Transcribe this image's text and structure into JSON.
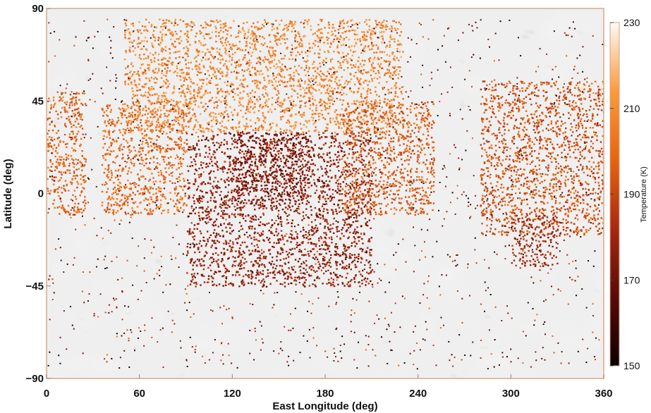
{
  "chart_data": {
    "type": "heatmap",
    "title": "",
    "xlabel": "East Longitude (deg)",
    "ylabel": "Latitude (deg)",
    "xlim": [
      0,
      360
    ],
    "ylim": [
      -90,
      90
    ],
    "xticks": [
      "0",
      "60",
      "120",
      "180",
      "240",
      "300",
      "360"
    ],
    "yticks": [
      "90",
      "45",
      "0",
      "−45",
      "−90"
    ],
    "basemap": "grayscale shaded relief",
    "colorbar": {
      "label": "Temperature (K)",
      "range": [
        150,
        230
      ],
      "ticks": [
        "150",
        "170",
        "190",
        "210",
        "230"
      ],
      "colors": [
        "#0a0000",
        "#5a0a04",
        "#a8280f",
        "#e8640f",
        "#fb9a3c",
        "#fffaf4"
      ],
      "placement": "right"
    },
    "regions": [
      {
        "lon": [
          0,
          25
        ],
        "lat": [
          -10,
          50
        ],
        "temp": 198
      },
      {
        "lon": [
          35,
          90
        ],
        "lat": [
          -10,
          45
        ],
        "temp": 200
      },
      {
        "lon": [
          90,
          210
        ],
        "lat": [
          -45,
          30
        ],
        "temp": 178
      },
      {
        "lon": [
          120,
          170
        ],
        "lat": [
          -5,
          30
        ],
        "temp": 172
      },
      {
        "lon": [
          50,
          230
        ],
        "lat": [
          30,
          85
        ],
        "temp": 208
      },
      {
        "lon": [
          190,
          250
        ],
        "lat": [
          -10,
          45
        ],
        "temp": 196
      },
      {
        "lon": [
          280,
          360
        ],
        "lat": [
          -20,
          55
        ],
        "temp": 193
      },
      {
        "lon": [
          300,
          330
        ],
        "lat": [
          -35,
          -10
        ],
        "temp": 180
      }
    ]
  }
}
